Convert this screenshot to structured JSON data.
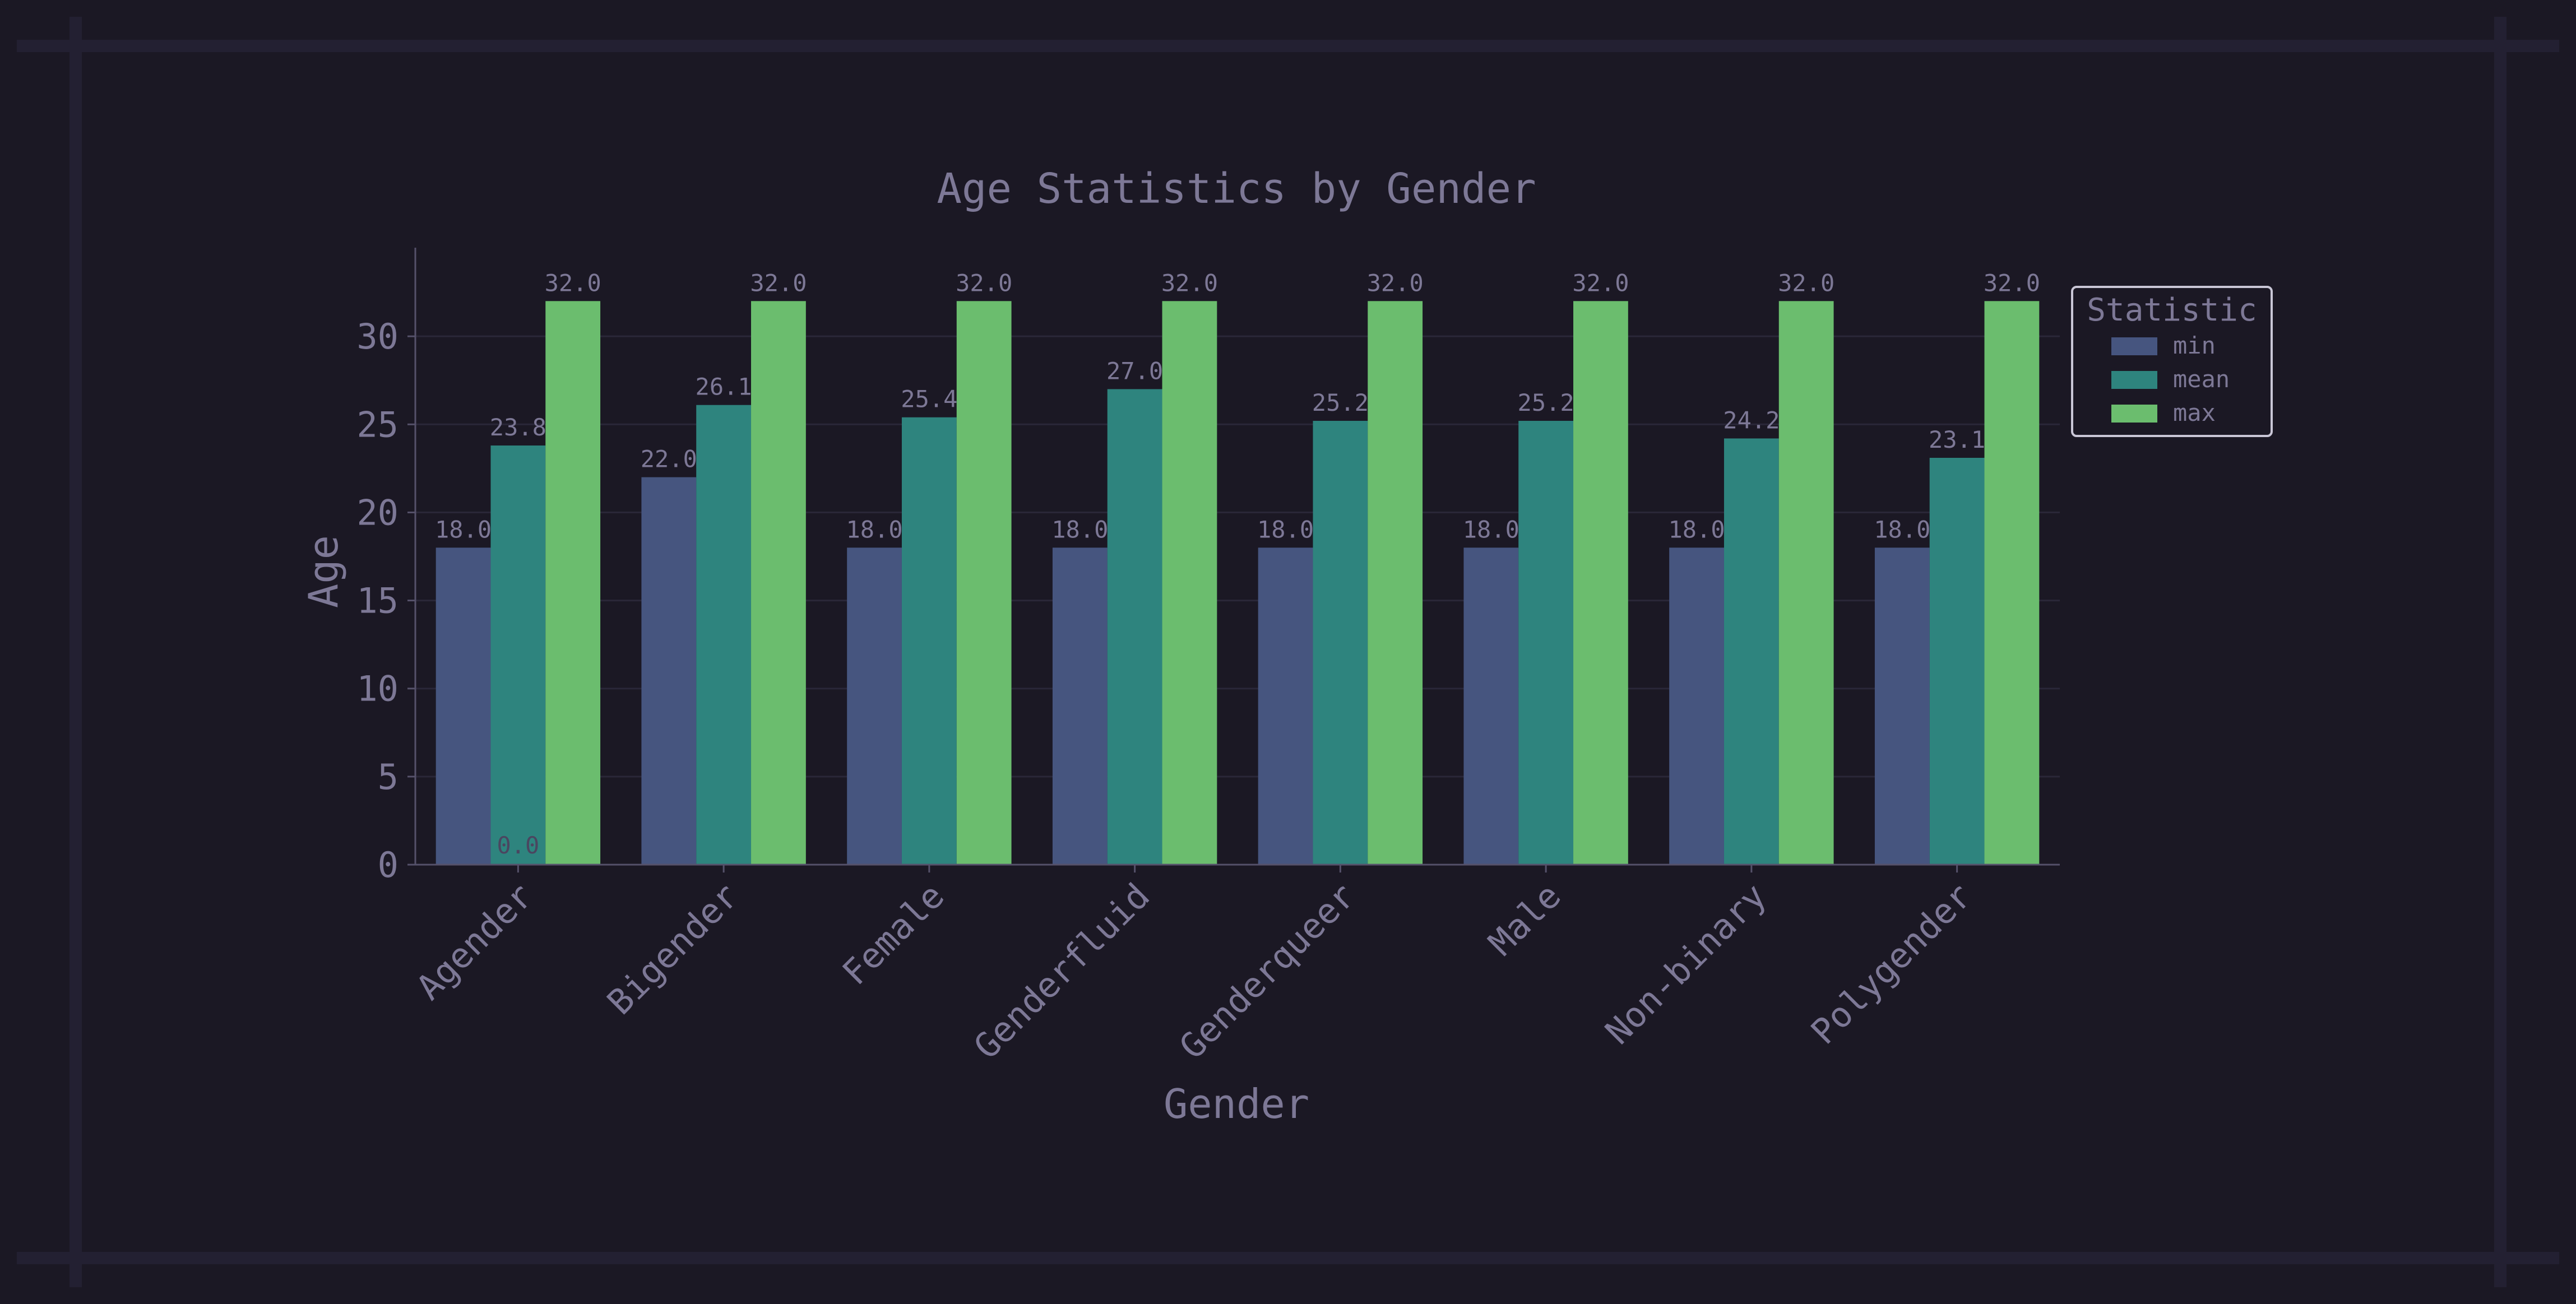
{
  "colors": {
    "background": "#1b1824",
    "frame": "#232032",
    "text": "#7d7896",
    "axis": "#55516a",
    "grid": "#2a2738",
    "legend_border": "#c9c6d6",
    "min": "#46557f",
    "mean": "#2e847e",
    "max": "#6bbd6e"
  },
  "chart_data": {
    "type": "bar",
    "title": "Age Statistics by Gender",
    "xlabel": "Gender",
    "ylabel": "Age",
    "ylim": [
      0,
      33.6
    ],
    "yticks": [
      0,
      5,
      10,
      15,
      20,
      25,
      30
    ],
    "grid": true,
    "legend": {
      "title": "Statistic",
      "position": "right-top"
    },
    "categories": [
      "Agender",
      "Bigender",
      "Female",
      "Genderfluid",
      "Genderqueer",
      "Male",
      "Non-binary",
      "Polygender"
    ],
    "series": [
      {
        "name": "min",
        "values": [
          18.0,
          22.0,
          18.0,
          18.0,
          18.0,
          18.0,
          18.0,
          18.0
        ],
        "labels": [
          "18.0",
          "22.0",
          "18.0",
          "18.0",
          "18.0",
          "18.0",
          "18.0",
          "18.0"
        ]
      },
      {
        "name": "mean",
        "values": [
          23.8,
          26.1,
          25.4,
          27.0,
          25.2,
          25.2,
          24.2,
          23.1
        ],
        "labels": [
          "23.8",
          "26.1",
          "25.4",
          "27.0",
          "25.2",
          "25.2",
          "24.2",
          "23.1"
        ]
      },
      {
        "name": "max",
        "values": [
          32.0,
          32.0,
          32.0,
          32.0,
          32.0,
          32.0,
          32.0,
          32.0
        ],
        "labels": [
          "32.0",
          "32.0",
          "32.0",
          "32.0",
          "32.0",
          "32.0",
          "32.0",
          "32.0"
        ]
      }
    ],
    "annotations": [
      {
        "text": "0.0"
      }
    ]
  }
}
